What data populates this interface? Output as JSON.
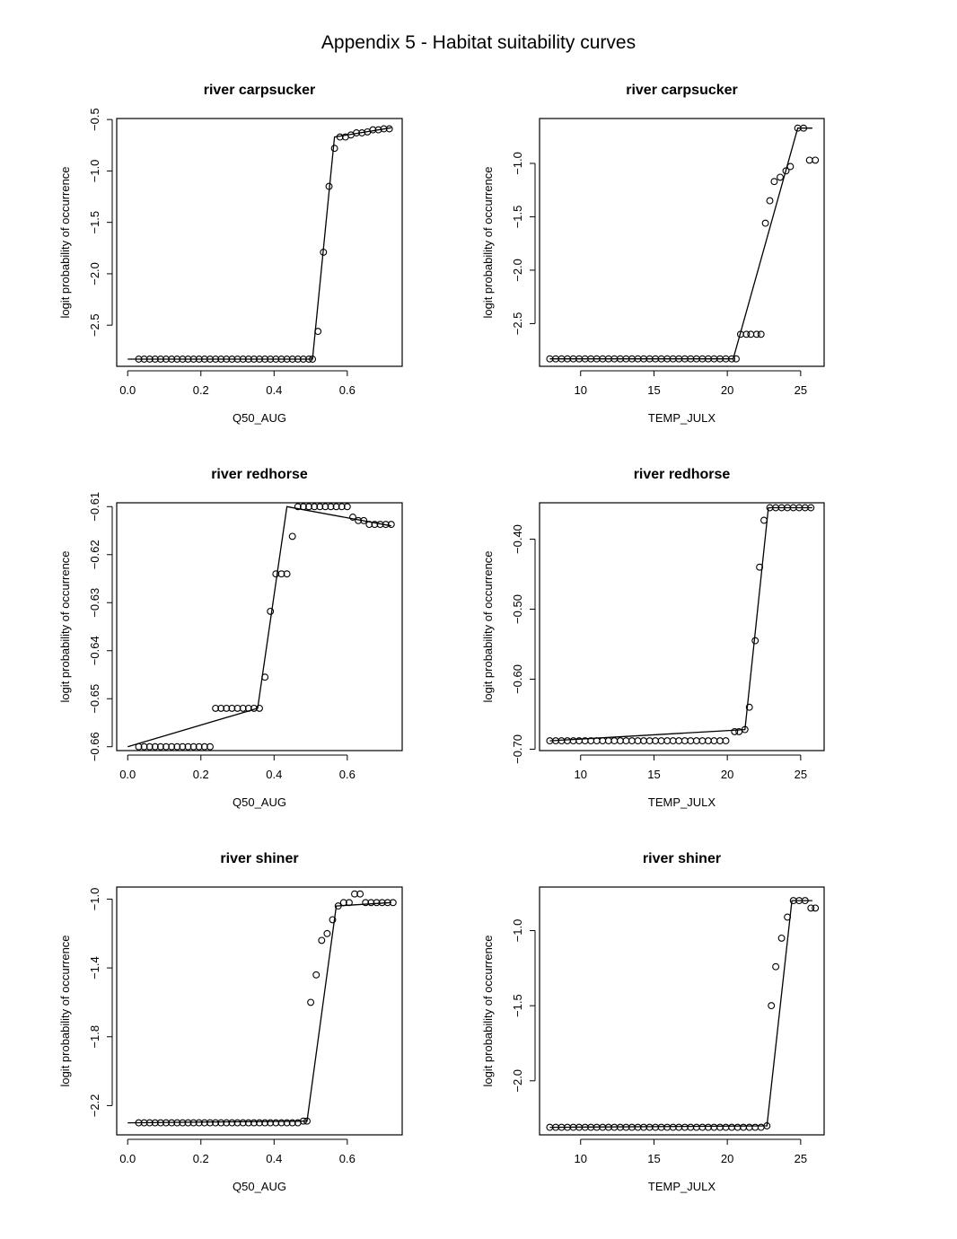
{
  "page": {
    "title": "Appendix 5 - Habitat suitability curves"
  },
  "chart_data": [
    {
      "type": "scatter",
      "title": "river carpsucker",
      "xlabel": "Q50_AUG",
      "ylabel": "logit probability of occurrence",
      "xlim": [
        -0.03,
        0.75
      ],
      "ylim": [
        -2.9,
        -0.49
      ],
      "xticks": [
        0.0,
        0.2,
        0.4,
        0.6
      ],
      "xtick_labels": [
        "0.0",
        "0.2",
        "0.4",
        "0.6"
      ],
      "yticks": [
        -2.5,
        -2.0,
        -1.5,
        -1.0,
        -0.5
      ],
      "ytick_labels": [
        "−2.5",
        "−2.0",
        "−1.5",
        "−1.0",
        "−0.5"
      ],
      "points_x": [
        0.03,
        0.045,
        0.06,
        0.075,
        0.09,
        0.105,
        0.12,
        0.135,
        0.15,
        0.165,
        0.18,
        0.195,
        0.21,
        0.225,
        0.24,
        0.255,
        0.27,
        0.285,
        0.3,
        0.315,
        0.33,
        0.345,
        0.36,
        0.375,
        0.39,
        0.405,
        0.42,
        0.435,
        0.45,
        0.465,
        0.48,
        0.495,
        0.505,
        0.52,
        0.535,
        0.55,
        0.565,
        0.58,
        0.595,
        0.61,
        0.625,
        0.64,
        0.655,
        0.67,
        0.685,
        0.7,
        0.715
      ],
      "points_y": [
        -2.83,
        -2.83,
        -2.83,
        -2.83,
        -2.83,
        -2.83,
        -2.83,
        -2.83,
        -2.83,
        -2.83,
        -2.83,
        -2.83,
        -2.83,
        -2.83,
        -2.83,
        -2.83,
        -2.83,
        -2.83,
        -2.83,
        -2.83,
        -2.83,
        -2.83,
        -2.83,
        -2.83,
        -2.83,
        -2.83,
        -2.83,
        -2.83,
        -2.83,
        -2.83,
        -2.83,
        -2.83,
        -2.83,
        -2.56,
        -1.79,
        -1.15,
        -0.78,
        -0.67,
        -0.67,
        -0.65,
        -0.63,
        -0.63,
        -0.62,
        -0.6,
        -0.6,
        -0.59,
        -0.59
      ],
      "line_x": [
        0.0,
        0.505,
        0.565,
        0.72
      ],
      "line_y": [
        -2.83,
        -2.83,
        -0.67,
        -0.58
      ]
    },
    {
      "type": "scatter",
      "title": "river carpsucker",
      "xlabel": "TEMP_JULX",
      "ylabel": "logit probability of occurrence",
      "xlim": [
        7.2,
        26.6
      ],
      "ylim": [
        -2.9,
        -0.58
      ],
      "xticks": [
        10,
        15,
        20,
        25
      ],
      "xtick_labels": [
        "10",
        "15",
        "20",
        "25"
      ],
      "yticks": [
        -2.5,
        -2.0,
        -1.5,
        -1.0
      ],
      "ytick_labels": [
        "−2.5",
        "−2.0",
        "−1.5",
        "−1.0"
      ],
      "points_x": [
        7.9,
        8.3,
        8.7,
        9.1,
        9.5,
        9.9,
        10.3,
        10.7,
        11.1,
        11.5,
        11.9,
        12.3,
        12.7,
        13.1,
        13.5,
        13.9,
        14.3,
        14.7,
        15.1,
        15.5,
        15.9,
        16.3,
        16.7,
        17.1,
        17.5,
        17.9,
        18.3,
        18.7,
        19.1,
        19.5,
        19.9,
        20.3,
        20.6,
        20.9,
        21.3,
        21.6,
        22.0,
        22.3,
        22.6,
        22.9,
        23.2,
        23.6,
        24.0,
        24.3,
        24.8,
        25.2,
        25.6,
        26.0
      ],
      "points_y": [
        -2.83,
        -2.83,
        -2.83,
        -2.83,
        -2.83,
        -2.83,
        -2.83,
        -2.83,
        -2.83,
        -2.83,
        -2.83,
        -2.83,
        -2.83,
        -2.83,
        -2.83,
        -2.83,
        -2.83,
        -2.83,
        -2.83,
        -2.83,
        -2.83,
        -2.83,
        -2.83,
        -2.83,
        -2.83,
        -2.83,
        -2.83,
        -2.83,
        -2.83,
        -2.83,
        -2.83,
        -2.83,
        -2.83,
        -2.6,
        -2.6,
        -2.6,
        -2.6,
        -2.6,
        -1.56,
        -1.35,
        -1.17,
        -1.13,
        -1.07,
        -1.03,
        -0.67,
        -0.67,
        -0.97,
        -0.97
      ],
      "line_x": [
        7.9,
        20.4,
        24.8,
        25.8
      ],
      "line_y": [
        -2.83,
        -2.83,
        -0.67,
        -0.67
      ]
    },
    {
      "type": "scatter",
      "title": "river redhorse",
      "xlabel": "Q50_AUG",
      "ylabel": "logit probability of occurrence",
      "xlim": [
        -0.03,
        0.75
      ],
      "ylim": [
        -0.6608,
        -0.6092
      ],
      "xticks": [
        0.0,
        0.2,
        0.4,
        0.6
      ],
      "xtick_labels": [
        "0.0",
        "0.2",
        "0.4",
        "0.6"
      ],
      "yticks": [
        -0.66,
        -0.65,
        -0.64,
        -0.63,
        -0.62,
        -0.61
      ],
      "ytick_labels": [
        "−0.66",
        "−0.65",
        "−0.64",
        "−0.63",
        "−0.62",
        "−0.61"
      ],
      "points_x": [
        0.03,
        0.045,
        0.06,
        0.075,
        0.09,
        0.105,
        0.12,
        0.135,
        0.15,
        0.165,
        0.18,
        0.195,
        0.21,
        0.225,
        0.24,
        0.255,
        0.27,
        0.285,
        0.3,
        0.315,
        0.33,
        0.345,
        0.36,
        0.375,
        0.39,
        0.405,
        0.42,
        0.435,
        0.45,
        0.465,
        0.48,
        0.495,
        0.51,
        0.525,
        0.54,
        0.555,
        0.57,
        0.585,
        0.6,
        0.615,
        0.63,
        0.645,
        0.66,
        0.675,
        0.69,
        0.705,
        0.72
      ],
      "points_y": [
        -0.66,
        -0.66,
        -0.66,
        -0.66,
        -0.66,
        -0.66,
        -0.66,
        -0.66,
        -0.66,
        -0.66,
        -0.66,
        -0.66,
        -0.66,
        -0.66,
        -0.652,
        -0.652,
        -0.652,
        -0.652,
        -0.652,
        -0.652,
        -0.652,
        -0.652,
        -0.652,
        -0.6455,
        -0.6318,
        -0.624,
        -0.624,
        -0.624,
        -0.6162,
        -0.61,
        -0.61,
        -0.61,
        -0.61,
        -0.61,
        -0.61,
        -0.61,
        -0.61,
        -0.61,
        -0.61,
        -0.6122,
        -0.6129,
        -0.6129,
        -0.6137,
        -0.6137,
        -0.6137,
        -0.6137,
        -0.6137
      ],
      "line_x": [
        0.0,
        0.355,
        0.435,
        0.72
      ],
      "line_y": [
        -0.66,
        -0.652,
        -0.61,
        -0.614
      ]
    },
    {
      "type": "scatter",
      "title": "river redhorse",
      "xlabel": "TEMP_JULX",
      "ylabel": "logit probability of occurrence",
      "xlim": [
        7.2,
        26.6
      ],
      "ylim": [
        -0.702,
        -0.348
      ],
      "xticks": [
        10,
        15,
        20,
        25
      ],
      "xtick_labels": [
        "10",
        "15",
        "20",
        "25"
      ],
      "yticks": [
        -0.7,
        -0.6,
        -0.5,
        -0.4
      ],
      "ytick_labels": [
        "−0.70",
        "−0.60",
        "−0.50",
        "−0.40"
      ],
      "points_x": [
        7.9,
        8.3,
        8.7,
        9.1,
        9.5,
        9.9,
        10.3,
        10.7,
        11.1,
        11.5,
        11.9,
        12.3,
        12.7,
        13.1,
        13.5,
        13.9,
        14.3,
        14.7,
        15.1,
        15.5,
        15.9,
        16.3,
        16.7,
        17.1,
        17.5,
        17.9,
        18.3,
        18.7,
        19.1,
        19.5,
        19.9,
        20.5,
        20.8,
        21.2,
        21.5,
        21.9,
        22.2,
        22.5,
        22.9,
        23.3,
        23.7,
        24.1,
        24.5,
        24.9,
        25.3,
        25.7
      ],
      "points_y": [
        -0.688,
        -0.688,
        -0.688,
        -0.688,
        -0.688,
        -0.688,
        -0.688,
        -0.688,
        -0.688,
        -0.688,
        -0.688,
        -0.688,
        -0.688,
        -0.688,
        -0.688,
        -0.688,
        -0.688,
        -0.688,
        -0.688,
        -0.688,
        -0.688,
        -0.688,
        -0.688,
        -0.688,
        -0.688,
        -0.688,
        -0.688,
        -0.688,
        -0.688,
        -0.688,
        -0.688,
        -0.675,
        -0.675,
        -0.672,
        -0.64,
        -0.545,
        -0.44,
        -0.373,
        -0.355,
        -0.355,
        -0.355,
        -0.355,
        -0.355,
        -0.355,
        -0.355,
        -0.355
      ],
      "line_x": [
        7.9,
        21.2,
        22.8,
        25.8
      ],
      "line_y": [
        -0.688,
        -0.672,
        -0.355,
        -0.355
      ]
    },
    {
      "type": "scatter",
      "title": "river shiner",
      "xlabel": "Q50_AUG",
      "ylabel": "logit probability of occurrence",
      "xlim": [
        -0.03,
        0.75
      ],
      "ylim": [
        -2.37,
        -0.93
      ],
      "xticks": [
        0.0,
        0.2,
        0.4,
        0.6
      ],
      "xtick_labels": [
        "0.0",
        "0.2",
        "0.4",
        "0.6"
      ],
      "yticks": [
        -2.2,
        -1.8,
        -1.4,
        -1.0
      ],
      "ytick_labels": [
        "−2.2",
        "−1.8",
        "−1.4",
        "−1.0"
      ],
      "points_x": [
        0.03,
        0.045,
        0.06,
        0.075,
        0.09,
        0.105,
        0.12,
        0.135,
        0.15,
        0.165,
        0.18,
        0.195,
        0.21,
        0.225,
        0.24,
        0.255,
        0.27,
        0.285,
        0.3,
        0.315,
        0.33,
        0.345,
        0.36,
        0.375,
        0.39,
        0.405,
        0.42,
        0.435,
        0.45,
        0.465,
        0.48,
        0.49,
        0.5,
        0.515,
        0.53,
        0.545,
        0.56,
        0.575,
        0.59,
        0.605,
        0.62,
        0.635,
        0.65,
        0.665,
        0.68,
        0.695,
        0.71,
        0.725
      ],
      "points_y": [
        -2.3,
        -2.3,
        -2.3,
        -2.3,
        -2.3,
        -2.3,
        -2.3,
        -2.3,
        -2.3,
        -2.3,
        -2.3,
        -2.3,
        -2.3,
        -2.3,
        -2.3,
        -2.3,
        -2.3,
        -2.3,
        -2.3,
        -2.3,
        -2.3,
        -2.3,
        -2.3,
        -2.3,
        -2.3,
        -2.3,
        -2.3,
        -2.3,
        -2.3,
        -2.3,
        -2.29,
        -2.29,
        -1.6,
        -1.44,
        -1.24,
        -1.2,
        -1.12,
        -1.04,
        -1.02,
        -1.02,
        -0.97,
        -0.97,
        -1.02,
        -1.02,
        -1.02,
        -1.02,
        -1.02,
        -1.02
      ],
      "line_x": [
        0.0,
        0.49,
        0.57,
        0.72
      ],
      "line_y": [
        -2.3,
        -2.29,
        -1.04,
        -1.02
      ]
    },
    {
      "type": "scatter",
      "title": "river shiner",
      "xlabel": "TEMP_JULX",
      "ylabel": "logit probability of occurrence",
      "xlim": [
        7.2,
        26.6
      ],
      "ylim": [
        -2.36,
        -0.71
      ],
      "xticks": [
        10,
        15,
        20,
        25
      ],
      "xtick_labels": [
        "10",
        "15",
        "20",
        "25"
      ],
      "yticks": [
        -2.0,
        -1.5,
        -1.0
      ],
      "ytick_labels": [
        "−2.0",
        "−1.5",
        "−1.0"
      ],
      "points_x": [
        7.9,
        8.3,
        8.7,
        9.1,
        9.5,
        9.9,
        10.3,
        10.7,
        11.1,
        11.5,
        11.9,
        12.3,
        12.7,
        13.1,
        13.5,
        13.9,
        14.3,
        14.7,
        15.1,
        15.5,
        15.9,
        16.3,
        16.7,
        17.1,
        17.5,
        17.9,
        18.3,
        18.7,
        19.1,
        19.5,
        19.9,
        20.3,
        20.7,
        21.1,
        21.5,
        21.9,
        22.3,
        22.7,
        23.0,
        23.3,
        23.7,
        24.1,
        24.5,
        24.9,
        25.3,
        25.7,
        26.0
      ],
      "points_y": [
        -2.31,
        -2.31,
        -2.31,
        -2.31,
        -2.31,
        -2.31,
        -2.31,
        -2.31,
        -2.31,
        -2.31,
        -2.31,
        -2.31,
        -2.31,
        -2.31,
        -2.31,
        -2.31,
        -2.31,
        -2.31,
        -2.31,
        -2.31,
        -2.31,
        -2.31,
        -2.31,
        -2.31,
        -2.31,
        -2.31,
        -2.31,
        -2.31,
        -2.31,
        -2.31,
        -2.31,
        -2.31,
        -2.31,
        -2.31,
        -2.31,
        -2.31,
        -2.31,
        -2.3,
        -1.5,
        -1.24,
        -1.05,
        -0.91,
        -0.8,
        -0.8,
        -0.8,
        -0.85,
        -0.85
      ],
      "line_x": [
        7.9,
        22.7,
        24.4,
        25.8
      ],
      "line_y": [
        -2.31,
        -2.3,
        -0.8,
        -0.8
      ]
    }
  ]
}
